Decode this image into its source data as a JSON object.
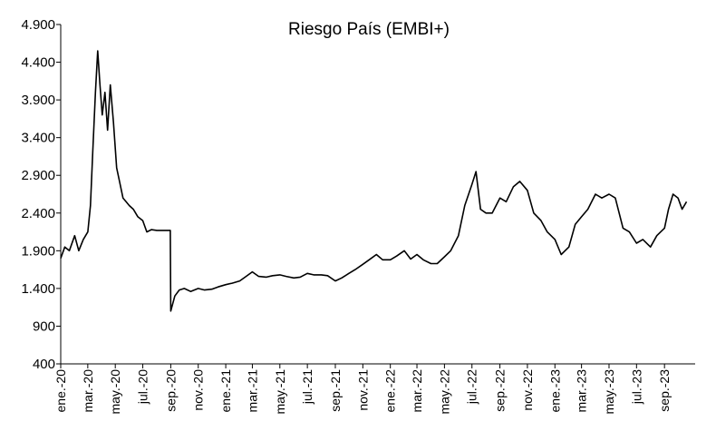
{
  "chart_data": {
    "type": "line",
    "title": "Riesgo País (EMBI+)",
    "xlabel": "",
    "ylabel": "",
    "ylim": [
      400,
      4900
    ],
    "y_ticks": [
      400,
      900,
      1400,
      1900,
      2400,
      2900,
      3400,
      3900,
      4400,
      4900
    ],
    "y_tick_labels": [
      "400",
      "900",
      "1.400",
      "1.900",
      "2.400",
      "2.900",
      "3.400",
      "3.900",
      "4.400",
      "4.900"
    ],
    "x_tick_labels": [
      "ene.-20",
      "mar.-20",
      "may.-20",
      "jul.-20",
      "sep.-20",
      "nov.-20",
      "ene.-21",
      "mar.-21",
      "may.-21",
      "jul.-21",
      "sep.-21",
      "nov.-21",
      "ene.-22",
      "mar.-22",
      "may.-22",
      "jul.-22",
      "sep.-22",
      "nov.-22",
      "ene.-23",
      "mar.-23",
      "may.-23",
      "jul.-23",
      "sep.-23"
    ],
    "grid": false,
    "legend": "none",
    "line_color": "#000000",
    "series": [
      {
        "x": [
          "2020-01-01",
          "2020-01-10",
          "2020-01-20",
          "2020-02-01",
          "2020-02-10",
          "2020-02-20",
          "2020-03-01",
          "2020-03-07",
          "2020-03-12",
          "2020-03-18",
          "2020-03-23",
          "2020-03-28",
          "2020-04-02",
          "2020-04-08",
          "2020-04-14",
          "2020-04-20",
          "2020-04-27",
          "2020-05-04",
          "2020-05-11",
          "2020-05-18",
          "2020-05-25",
          "2020-06-01",
          "2020-06-10",
          "2020-06-20",
          "2020-07-01",
          "2020-07-10",
          "2020-07-20",
          "2020-08-01",
          "2020-08-10",
          "2020-08-20",
          "2020-08-31",
          "2020-09-01",
          "2020-09-10",
          "2020-09-20",
          "2020-10-01",
          "2020-10-15",
          "2020-11-01",
          "2020-11-15",
          "2020-12-01",
          "2020-12-15",
          "2021-01-01",
          "2021-01-15",
          "2021-02-01",
          "2021-02-15",
          "2021-03-01",
          "2021-03-15",
          "2021-04-01",
          "2021-04-15",
          "2021-05-01",
          "2021-05-15",
          "2021-06-01",
          "2021-06-15",
          "2021-07-01",
          "2021-07-15",
          "2021-08-01",
          "2021-08-15",
          "2021-09-01",
          "2021-09-15",
          "2021-10-01",
          "2021-10-15",
          "2021-11-01",
          "2021-11-15",
          "2021-12-01",
          "2021-12-15",
          "2022-01-01",
          "2022-01-15",
          "2022-02-01",
          "2022-02-15",
          "2022-03-01",
          "2022-03-15",
          "2022-04-01",
          "2022-04-15",
          "2022-05-01",
          "2022-05-15",
          "2022-06-01",
          "2022-06-15",
          "2022-07-01",
          "2022-07-10",
          "2022-07-20",
          "2022-08-01",
          "2022-08-15",
          "2022-09-01",
          "2022-09-15",
          "2022-10-01",
          "2022-10-15",
          "2022-11-01",
          "2022-11-15",
          "2022-12-01",
          "2022-12-15",
          "2023-01-01",
          "2023-01-15",
          "2023-02-01",
          "2023-02-15",
          "2023-03-01",
          "2023-03-15",
          "2023-04-01",
          "2023-04-15",
          "2023-05-01",
          "2023-05-15",
          "2023-06-01",
          "2023-06-15",
          "2023-07-01",
          "2023-07-15",
          "2023-08-01",
          "2023-08-15",
          "2023-09-01",
          "2023-09-10",
          "2023-09-20",
          "2023-10-01",
          "2023-10-10",
          "2023-10-20"
        ],
        "values": [
          1800,
          1950,
          1900,
          2100,
          1900,
          2050,
          2150,
          2500,
          3200,
          4000,
          4550,
          4100,
          3700,
          4000,
          3500,
          4100,
          3600,
          3000,
          2800,
          2600,
          2550,
          2500,
          2450,
          2350,
          2300,
          2150,
          2180,
          2170,
          2170,
          2170,
          2170,
          1100,
          1300,
          1380,
          1400,
          1360,
          1400,
          1380,
          1390,
          1420,
          1450,
          1470,
          1500,
          1560,
          1620,
          1560,
          1550,
          1570,
          1580,
          1560,
          1540,
          1550,
          1600,
          1580,
          1580,
          1570,
          1500,
          1540,
          1600,
          1650,
          1720,
          1780,
          1850,
          1780,
          1780,
          1830,
          1900,
          1790,
          1850,
          1780,
          1730,
          1730,
          1820,
          1900,
          2100,
          2500,
          2780,
          2950,
          2450,
          2400,
          2400,
          2600,
          2550,
          2750,
          2820,
          2700,
          2400,
          2300,
          2150,
          2050,
          1850,
          1950,
          2250,
          2350,
          2450,
          2650,
          2600,
          2650,
          2600,
          2200,
          2150,
          2000,
          2050,
          1950,
          2100,
          2200,
          2450,
          2650,
          2600,
          2450,
          2550
        ]
      }
    ]
  }
}
